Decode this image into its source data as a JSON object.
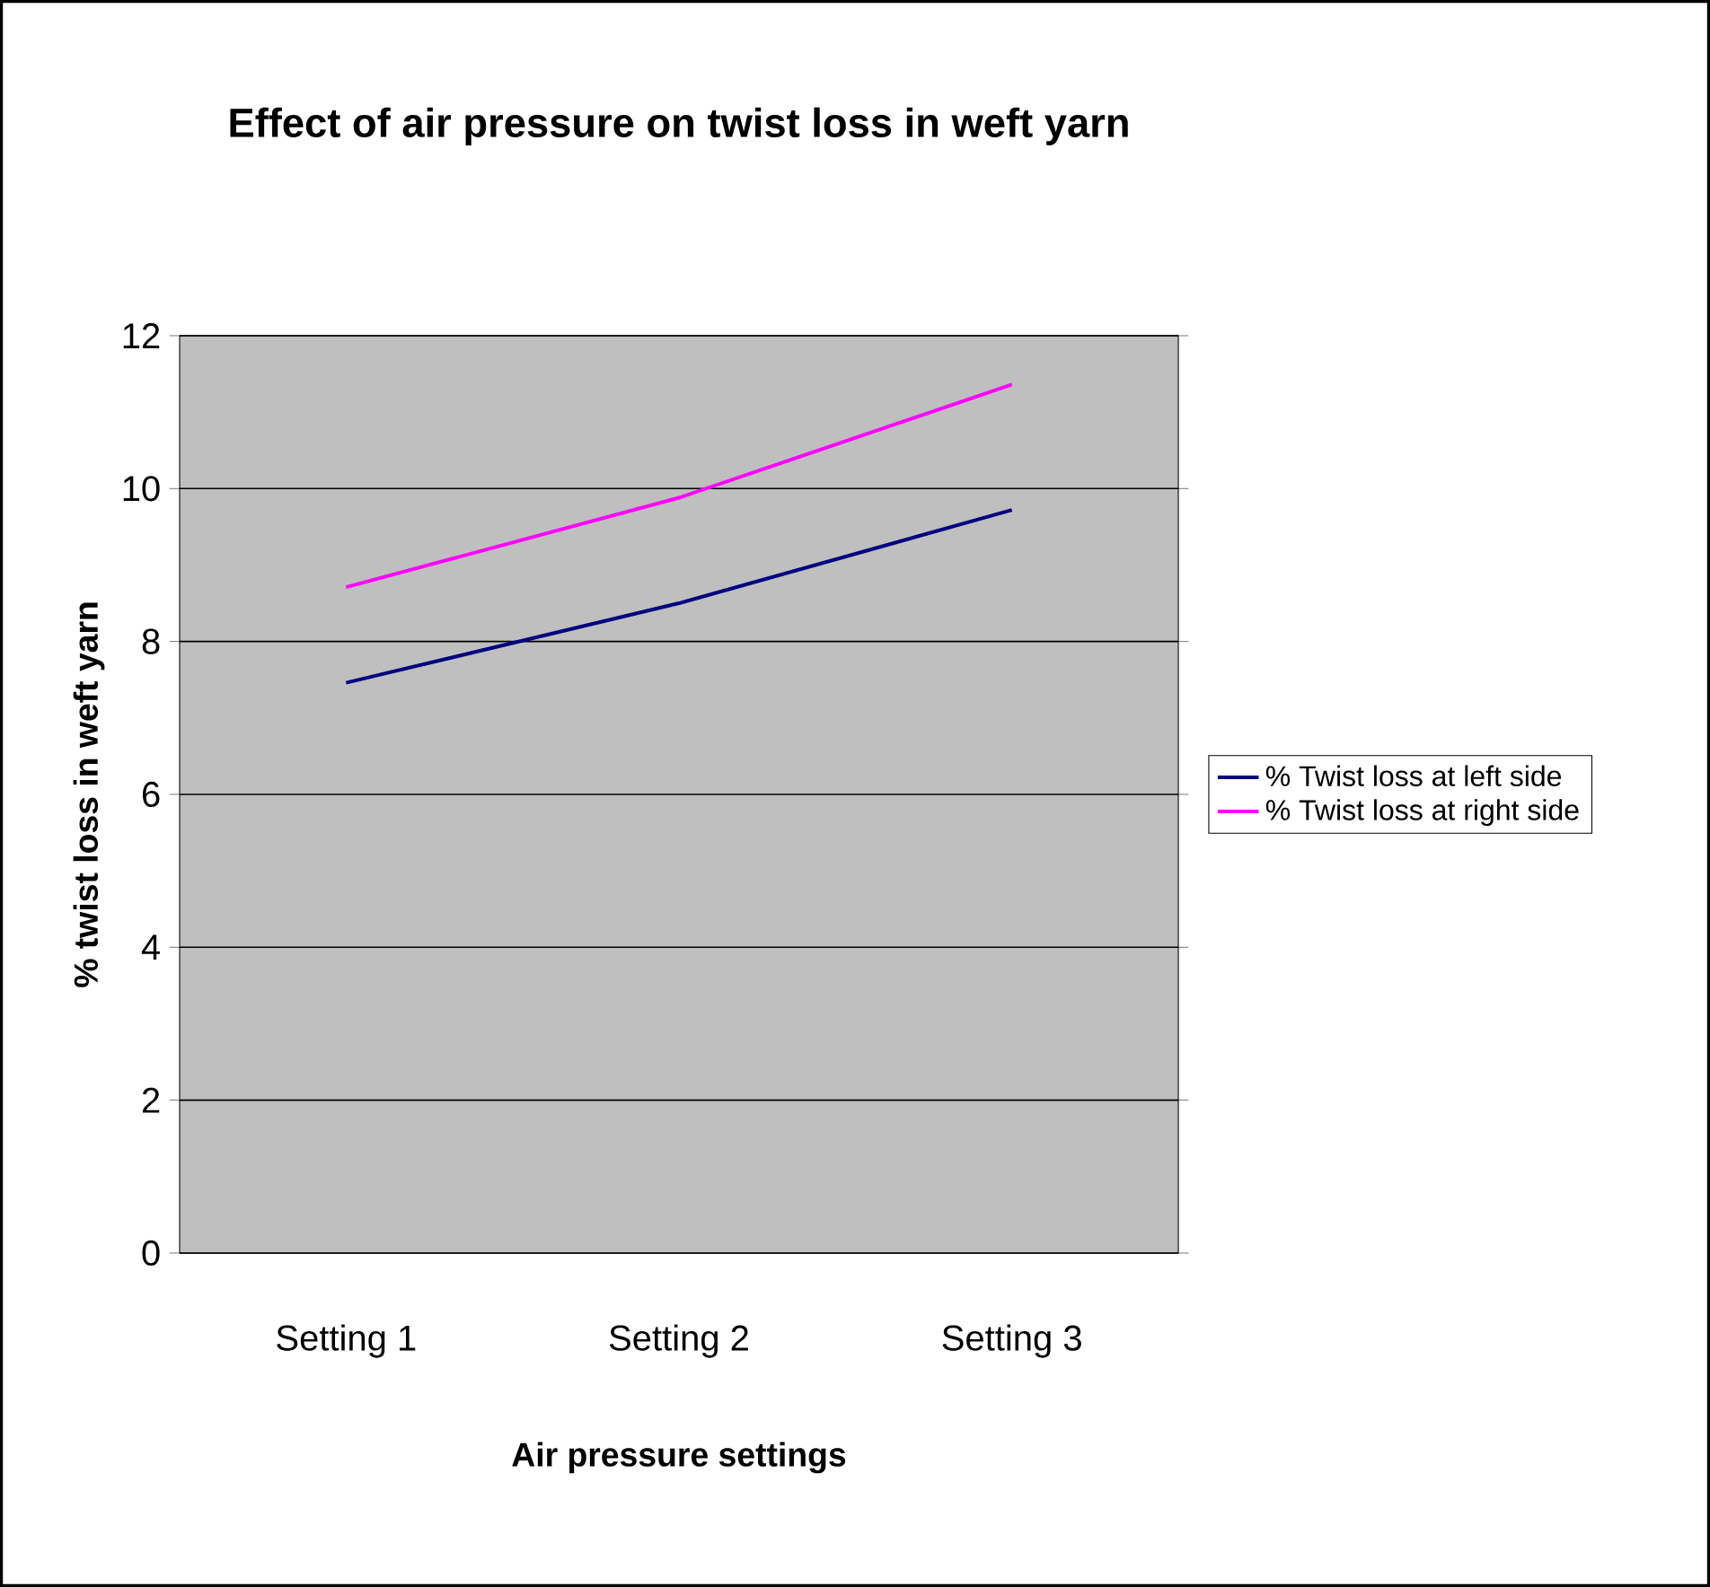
{
  "chart_data": {
    "type": "line",
    "title": "Effect of air pressure on twist loss in weft yarn",
    "xlabel": "Air pressure settings",
    "ylabel": "% twist loss in weft yarn",
    "categories": [
      "Setting 1",
      "Setting 2",
      "Setting 3"
    ],
    "series": [
      {
        "name": "% Twist loss at left side",
        "color": "#000080",
        "values": [
          7.46,
          8.5,
          9.72
        ]
      },
      {
        "name": "% Twist loss at right side",
        "color": "#ff00ff",
        "values": [
          8.71,
          9.88,
          11.36
        ]
      }
    ],
    "ylim": [
      0,
      12
    ],
    "yticks": [
      0,
      2,
      4,
      6,
      8,
      10,
      12
    ],
    "grid": "y",
    "legend": "right",
    "marker": "none",
    "line_style": "solid"
  }
}
